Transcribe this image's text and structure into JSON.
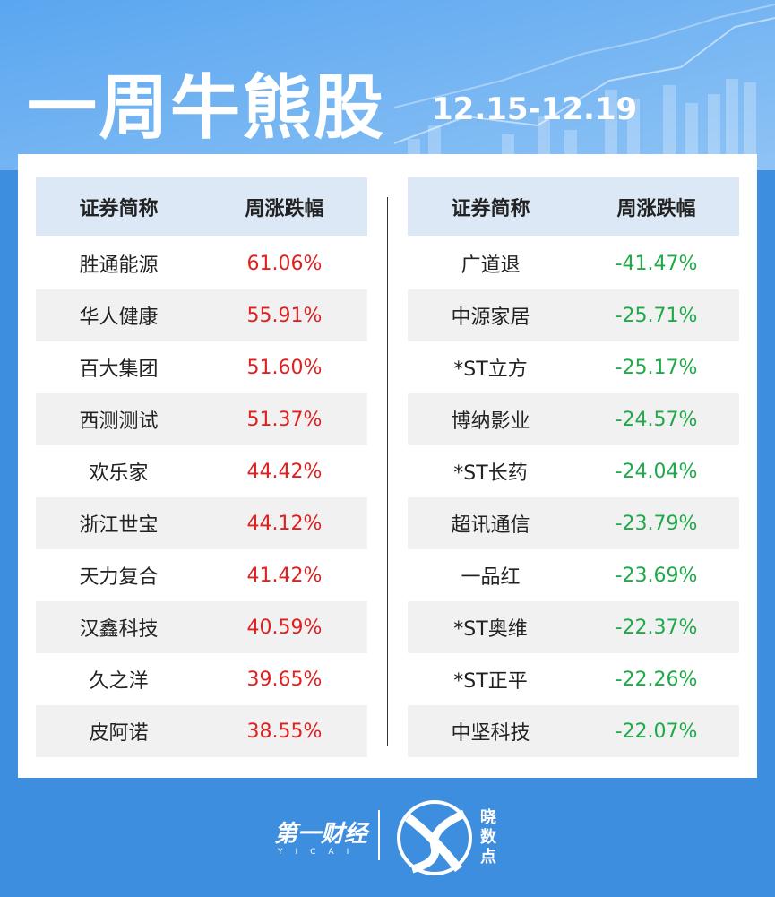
{
  "header": {
    "title": "一周牛熊股",
    "date": "12.15-12.19"
  },
  "tables": [
    {
      "columns": [
        "证券简称",
        "周涨跌幅"
      ],
      "rows": [
        [
          "胜通能源",
          "61.06%"
        ],
        [
          "华人健康",
          "55.91%"
        ],
        [
          "百大集团",
          "51.60%"
        ],
        [
          "西测测试",
          "51.37%"
        ],
        [
          "欢乐家",
          "44.42%"
        ],
        [
          "浙江世宝",
          "44.12%"
        ],
        [
          "天力复合",
          "41.42%"
        ],
        [
          "汉鑫科技",
          "40.59%"
        ],
        [
          "久之洋",
          "39.65%"
        ],
        [
          "皮阿诺",
          "38.55%"
        ]
      ]
    },
    {
      "columns": [
        "证券简称",
        "周涨跌幅"
      ],
      "rows": [
        [
          "广道退",
          "-41.47%"
        ],
        [
          "中源家居",
          "-25.71%"
        ],
        [
          "*ST立方",
          "-25.17%"
        ],
        [
          "博纳影业",
          "-24.57%"
        ],
        [
          "*ST长药",
          "-24.04%"
        ],
        [
          "超讯通信",
          "-23.79%"
        ],
        [
          "一品红",
          "-23.69%"
        ],
        [
          "*ST奥维",
          "-22.37%"
        ],
        [
          "*ST正平",
          "-22.26%"
        ],
        [
          "中坚科技",
          "-22.07%"
        ]
      ]
    }
  ],
  "footer": {
    "brand": "第一财经",
    "brand_en": "YICAI",
    "product": "晓数点"
  }
}
